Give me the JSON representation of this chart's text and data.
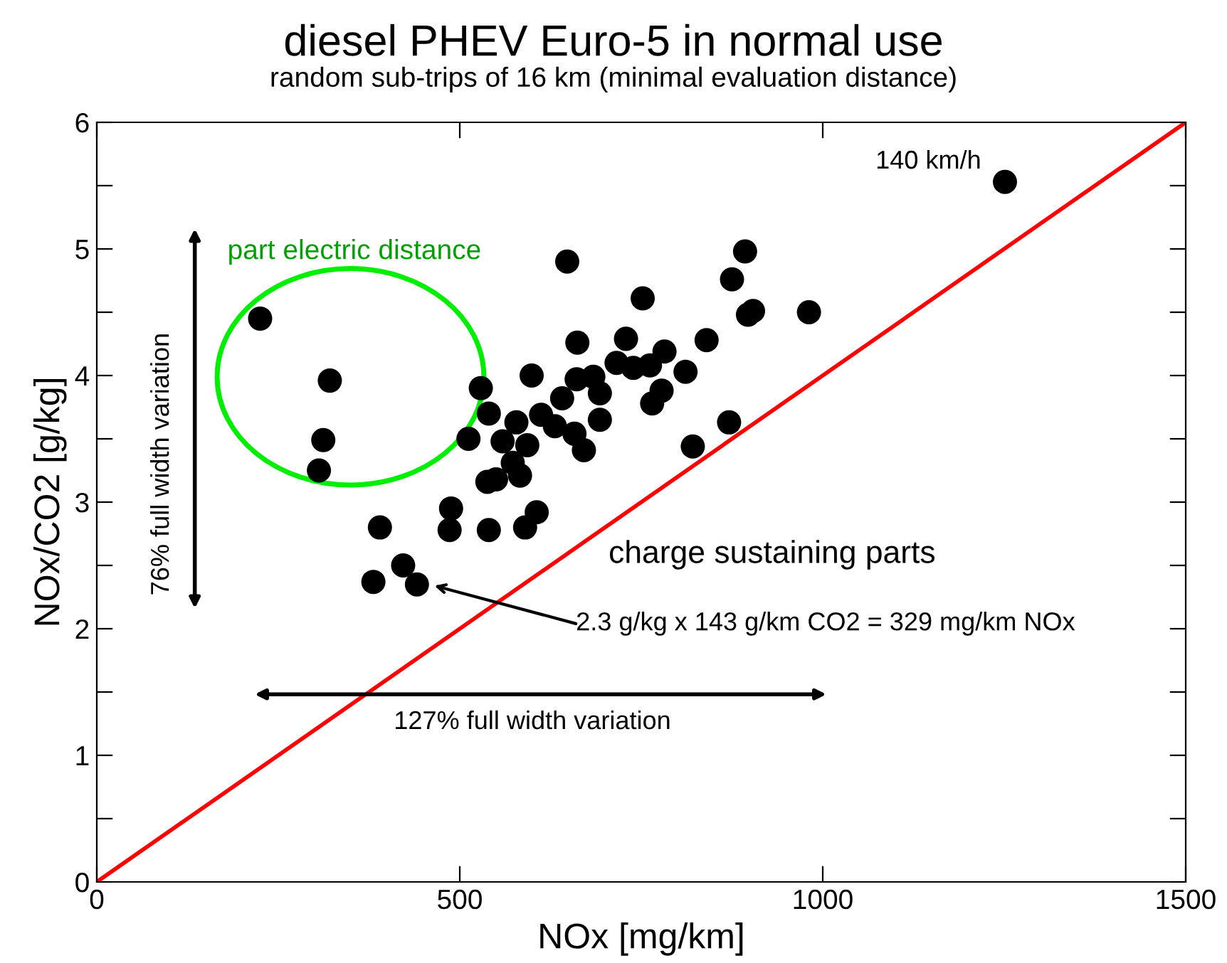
{
  "chart_data": {
    "type": "scatter",
    "title": "diesel PHEV Euro-5 in normal use",
    "subtitle": "random sub-trips of 16 km (minimal evaluation distance)",
    "xlabel": "NOx [mg/km]",
    "ylabel": "NOx/CO2 [g/kg]",
    "series": [
      {
        "color": "#000000",
        "marker": "circle",
        "x": [
          225,
          321,
          312,
          306,
          648,
          662,
          599,
          529,
          540,
          512,
          559,
          578,
          593,
          573,
          583,
          538,
          550,
          488,
          486,
          540,
          606,
          590,
          390,
          422,
          381,
          441,
          612,
          631,
          641,
          661,
          684,
          693,
          693,
          658,
          671,
          716,
          729,
          893,
          875,
          752,
          904,
          897,
          981,
          840,
          782,
          811,
          762,
          739,
          778,
          765,
          871,
          821,
          1251
        ],
        "values": [
          4.45,
          3.96,
          3.49,
          3.25,
          4.9,
          4.26,
          4.0,
          3.9,
          3.7,
          3.5,
          3.48,
          3.63,
          3.45,
          3.31,
          3.21,
          3.16,
          3.18,
          2.95,
          2.78,
          2.78,
          2.92,
          2.8,
          2.8,
          2.5,
          2.37,
          2.35,
          3.69,
          3.6,
          3.82,
          3.97,
          3.99,
          3.86,
          3.65,
          3.54,
          3.41,
          4.1,
          4.29,
          4.98,
          4.76,
          4.61,
          4.51,
          4.48,
          4.5,
          4.28,
          4.19,
          4.03,
          4.08,
          4.06,
          3.88,
          3.78,
          3.63,
          3.44,
          5.53
        ]
      },
      {
        "type": "line",
        "color": "#ff0000",
        "x": [
          0,
          1500
        ],
        "values": [
          0,
          6
        ]
      }
    ],
    "xlim": [
      0,
      1500
    ],
    "ylim": [
      0,
      6
    ],
    "xticks": [
      0,
      500,
      1000,
      1500
    ],
    "yticks": [
      0,
      {
        "value": 0.5,
        "label": null
      },
      1,
      {
        "value": 1.5,
        "label": null
      },
      2,
      {
        "value": 2.5,
        "label": null
      },
      3,
      {
        "value": 3.5,
        "label": null
      },
      4,
      {
        "value": 4.5,
        "label": null
      },
      5,
      {
        "value": 5.5,
        "label": null
      },
      6
    ],
    "grid": false,
    "annotations": [
      {
        "text": "140 km/h",
        "x": 1251,
        "y": 5.53
      },
      "2.3 g/kg x 143 g/km CO2 = 329 mg/km NOx",
      "part electric distance",
      "76% full width variation",
      "127% full width variation",
      "charge sustaining parts"
    ]
  }
}
